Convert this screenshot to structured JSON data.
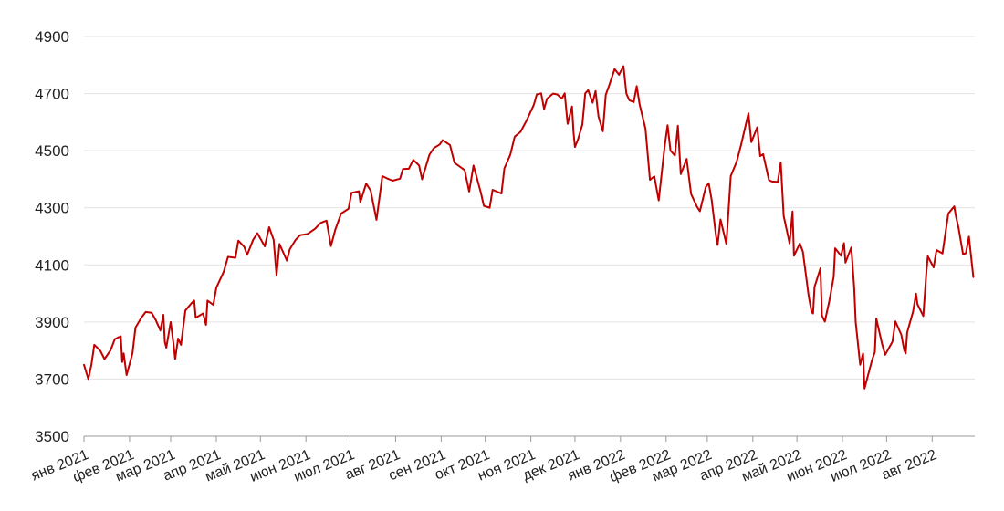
{
  "chart_data": {
    "type": "line",
    "title": "",
    "xlabel": "",
    "ylabel": "",
    "ylim": [
      3500,
      4900
    ],
    "yticks": [
      3500,
      3700,
      3900,
      4100,
      4300,
      4500,
      4700,
      4900
    ],
    "xlim": [
      "2021-01-01",
      "2022-08-30"
    ],
    "xticks": [
      {
        "date": "2021-01-01",
        "label": "янв 2021"
      },
      {
        "date": "2021-02-01",
        "label": "фев 2021"
      },
      {
        "date": "2021-03-01",
        "label": "мар 2021"
      },
      {
        "date": "2021-04-01",
        "label": "апр 2021"
      },
      {
        "date": "2021-05-01",
        "label": "май 2021"
      },
      {
        "date": "2021-06-01",
        "label": "июн 2021"
      },
      {
        "date": "2021-07-01",
        "label": "июл 2021"
      },
      {
        "date": "2021-08-01",
        "label": "авг 2021"
      },
      {
        "date": "2021-09-01",
        "label": "сен 2021"
      },
      {
        "date": "2021-10-01",
        "label": "окт 2021"
      },
      {
        "date": "2021-11-01",
        "label": "ноя 2021"
      },
      {
        "date": "2021-12-01",
        "label": "дек 2021"
      },
      {
        "date": "2022-01-01",
        "label": "янв 2022"
      },
      {
        "date": "2022-02-01",
        "label": "фев 2022"
      },
      {
        "date": "2022-03-01",
        "label": "мар 2022"
      },
      {
        "date": "2022-04-01",
        "label": "апр 2022"
      },
      {
        "date": "2022-05-01",
        "label": "май 2022"
      },
      {
        "date": "2022-06-01",
        "label": "июн 2022"
      },
      {
        "date": "2022-07-01",
        "label": "июл 2022"
      },
      {
        "date": "2022-08-01",
        "label": "авг 2022"
      }
    ],
    "grid": true,
    "series": [
      {
        "color": "#c00000",
        "points": [
          [
            "2021-01-01",
            3750
          ],
          [
            "2021-01-04",
            3700
          ],
          [
            "2021-01-06",
            3750
          ],
          [
            "2021-01-08",
            3820
          ],
          [
            "2021-01-12",
            3800
          ],
          [
            "2021-01-15",
            3770
          ],
          [
            "2021-01-19",
            3800
          ],
          [
            "2021-01-22",
            3840
          ],
          [
            "2021-01-26",
            3850
          ],
          [
            "2021-01-27",
            3760
          ],
          [
            "2021-01-28",
            3790
          ],
          [
            "2021-01-30",
            3714
          ],
          [
            "2021-02-03",
            3790
          ],
          [
            "2021-02-05",
            3880
          ],
          [
            "2021-02-09",
            3915
          ],
          [
            "2021-02-12",
            3935
          ],
          [
            "2021-02-16",
            3932
          ],
          [
            "2021-02-19",
            3905
          ],
          [
            "2021-02-22",
            3870
          ],
          [
            "2021-02-24",
            3925
          ],
          [
            "2021-02-25",
            3830
          ],
          [
            "2021-02-26",
            3810
          ],
          [
            "2021-03-01",
            3900
          ],
          [
            "2021-03-03",
            3820
          ],
          [
            "2021-03-04",
            3770
          ],
          [
            "2021-03-06",
            3842
          ],
          [
            "2021-03-08",
            3820
          ],
          [
            "2021-03-11",
            3940
          ],
          [
            "2021-03-15",
            3965
          ],
          [
            "2021-03-17",
            3975
          ],
          [
            "2021-03-18",
            3915
          ],
          [
            "2021-03-23",
            3930
          ],
          [
            "2021-03-25",
            3890
          ],
          [
            "2021-03-26",
            3975
          ],
          [
            "2021-03-30",
            3960
          ],
          [
            "2021-04-01",
            4020
          ],
          [
            "2021-04-06",
            4075
          ],
          [
            "2021-04-09",
            4128
          ],
          [
            "2021-04-14",
            4125
          ],
          [
            "2021-04-16",
            4185
          ],
          [
            "2021-04-20",
            4163
          ],
          [
            "2021-04-22",
            4135
          ],
          [
            "2021-04-26",
            4187
          ],
          [
            "2021-04-29",
            4211
          ],
          [
            "2021-05-04",
            4165
          ],
          [
            "2021-05-07",
            4232
          ],
          [
            "2021-05-10",
            4188
          ],
          [
            "2021-05-12",
            4063
          ],
          [
            "2021-05-14",
            4173
          ],
          [
            "2021-05-19",
            4115
          ],
          [
            "2021-05-21",
            4155
          ],
          [
            "2021-05-25",
            4188
          ],
          [
            "2021-05-28",
            4204
          ],
          [
            "2021-06-02",
            4208
          ],
          [
            "2021-06-07",
            4226
          ],
          [
            "2021-06-11",
            4247
          ],
          [
            "2021-06-15",
            4255
          ],
          [
            "2021-06-18",
            4166
          ],
          [
            "2021-06-21",
            4224
          ],
          [
            "2021-06-25",
            4280
          ],
          [
            "2021-06-30",
            4297
          ],
          [
            "2021-07-02",
            4352
          ],
          [
            "2021-07-07",
            4358
          ],
          [
            "2021-07-08",
            4320
          ],
          [
            "2021-07-12",
            4385
          ],
          [
            "2021-07-15",
            4360
          ],
          [
            "2021-07-19",
            4258
          ],
          [
            "2021-07-23",
            4411
          ],
          [
            "2021-07-27",
            4401
          ],
          [
            "2021-07-30",
            4395
          ],
          [
            "2021-08-04",
            4402
          ],
          [
            "2021-08-06",
            4436
          ],
          [
            "2021-08-10",
            4437
          ],
          [
            "2021-08-13",
            4468
          ],
          [
            "2021-08-17",
            4448
          ],
          [
            "2021-08-19",
            4400
          ],
          [
            "2021-08-24",
            4486
          ],
          [
            "2021-08-27",
            4509
          ],
          [
            "2021-08-31",
            4522
          ],
          [
            "2021-09-02",
            4537
          ],
          [
            "2021-09-07",
            4520
          ],
          [
            "2021-09-10",
            4458
          ],
          [
            "2021-09-14",
            4443
          ],
          [
            "2021-09-17",
            4432
          ],
          [
            "2021-09-20",
            4357
          ],
          [
            "2021-09-23",
            4448
          ],
          [
            "2021-09-28",
            4352
          ],
          [
            "2021-09-30",
            4307
          ],
          [
            "2021-10-04",
            4300
          ],
          [
            "2021-10-06",
            4363
          ],
          [
            "2021-10-12",
            4350
          ],
          [
            "2021-10-14",
            4438
          ],
          [
            "2021-10-18",
            4486
          ],
          [
            "2021-10-21",
            4549
          ],
          [
            "2021-10-25",
            4566
          ],
          [
            "2021-10-29",
            4605
          ],
          [
            "2021-11-03",
            4660
          ],
          [
            "2021-11-05",
            4697
          ],
          [
            "2021-11-08",
            4701
          ],
          [
            "2021-11-10",
            4646
          ],
          [
            "2021-11-12",
            4682
          ],
          [
            "2021-11-16",
            4700
          ],
          [
            "2021-11-19",
            4697
          ],
          [
            "2021-11-22",
            4682
          ],
          [
            "2021-11-24",
            4701
          ],
          [
            "2021-11-26",
            4594
          ],
          [
            "2021-11-29",
            4655
          ],
          [
            "2021-11-30",
            4567
          ],
          [
            "2021-12-01",
            4513
          ],
          [
            "2021-12-03",
            4538
          ],
          [
            "2021-12-06",
            4591
          ],
          [
            "2021-12-08",
            4701
          ],
          [
            "2021-12-10",
            4712
          ],
          [
            "2021-12-13",
            4668
          ],
          [
            "2021-12-15",
            4709
          ],
          [
            "2021-12-17",
            4620
          ],
          [
            "2021-12-20",
            4568
          ],
          [
            "2021-12-22",
            4696
          ],
          [
            "2021-12-24",
            4725
          ],
          [
            "2021-12-28",
            4786
          ],
          [
            "2021-12-31",
            4766
          ],
          [
            "2022-01-03",
            4796
          ],
          [
            "2022-01-05",
            4700
          ],
          [
            "2022-01-07",
            4677
          ],
          [
            "2022-01-10",
            4670
          ],
          [
            "2022-01-12",
            4726
          ],
          [
            "2022-01-14",
            4662
          ],
          [
            "2022-01-18",
            4577
          ],
          [
            "2022-01-21",
            4398
          ],
          [
            "2022-01-24",
            4410
          ],
          [
            "2022-01-27",
            4326
          ],
          [
            "2022-01-31",
            4515
          ],
          [
            "2022-02-02",
            4589
          ],
          [
            "2022-02-04",
            4500
          ],
          [
            "2022-02-07",
            4483
          ],
          [
            "2022-02-09",
            4587
          ],
          [
            "2022-02-11",
            4418
          ],
          [
            "2022-02-15",
            4471
          ],
          [
            "2022-02-18",
            4348
          ],
          [
            "2022-02-22",
            4304
          ],
          [
            "2022-02-24",
            4288
          ],
          [
            "2022-02-28",
            4373
          ],
          [
            "2022-03-02",
            4386
          ],
          [
            "2022-03-04",
            4328
          ],
          [
            "2022-03-07",
            4201
          ],
          [
            "2022-03-08",
            4170
          ],
          [
            "2022-03-10",
            4259
          ],
          [
            "2022-03-14",
            4173
          ],
          [
            "2022-03-17",
            4411
          ],
          [
            "2022-03-21",
            4461
          ],
          [
            "2022-03-24",
            4520
          ],
          [
            "2022-03-29",
            4631
          ],
          [
            "2022-03-31",
            4530
          ],
          [
            "2022-04-04",
            4582
          ],
          [
            "2022-04-06",
            4481
          ],
          [
            "2022-04-08",
            4488
          ],
          [
            "2022-04-12",
            4397
          ],
          [
            "2022-04-14",
            4392
          ],
          [
            "2022-04-18",
            4391
          ],
          [
            "2022-04-20",
            4459
          ],
          [
            "2022-04-22",
            4272
          ],
          [
            "2022-04-26",
            4175
          ],
          [
            "2022-04-28",
            4287
          ],
          [
            "2022-04-29",
            4132
          ],
          [
            "2022-05-03",
            4175
          ],
          [
            "2022-05-05",
            4147
          ],
          [
            "2022-05-09",
            3991
          ],
          [
            "2022-05-11",
            3935
          ],
          [
            "2022-05-12",
            3930
          ],
          [
            "2022-05-13",
            4023
          ],
          [
            "2022-05-17",
            4088
          ],
          [
            "2022-05-18",
            3923
          ],
          [
            "2022-05-20",
            3901
          ],
          [
            "2022-05-23",
            3973
          ],
          [
            "2022-05-26",
            4058
          ],
          [
            "2022-05-27",
            4158
          ],
          [
            "2022-05-31",
            4132
          ],
          [
            "2022-06-02",
            4176
          ],
          [
            "2022-06-03",
            4108
          ],
          [
            "2022-06-07",
            4161
          ],
          [
            "2022-06-09",
            4018
          ],
          [
            "2022-06-10",
            3900
          ],
          [
            "2022-06-13",
            3750
          ],
          [
            "2022-06-15",
            3790
          ],
          [
            "2022-06-16",
            3667
          ],
          [
            "2022-06-21",
            3765
          ],
          [
            "2022-06-23",
            3795
          ],
          [
            "2022-06-24",
            3912
          ],
          [
            "2022-06-28",
            3822
          ],
          [
            "2022-06-30",
            3785
          ],
          [
            "2022-07-05",
            3831
          ],
          [
            "2022-07-07",
            3902
          ],
          [
            "2022-07-11",
            3855
          ],
          [
            "2022-07-13",
            3801
          ],
          [
            "2022-07-14",
            3790
          ],
          [
            "2022-07-15",
            3863
          ],
          [
            "2022-07-19",
            3937
          ],
          [
            "2022-07-21",
            3999
          ],
          [
            "2022-07-22",
            3962
          ],
          [
            "2022-07-26",
            3921
          ],
          [
            "2022-07-28",
            4072
          ],
          [
            "2022-07-29",
            4130
          ],
          [
            "2022-08-02",
            4091
          ],
          [
            "2022-08-04",
            4152
          ],
          [
            "2022-08-08",
            4140
          ],
          [
            "2022-08-10",
            4210
          ],
          [
            "2022-08-12",
            4280
          ],
          [
            "2022-08-16",
            4305
          ],
          [
            "2022-08-17",
            4274
          ],
          [
            "2022-08-19",
            4228
          ],
          [
            "2022-08-22",
            4138
          ],
          [
            "2022-08-24",
            4141
          ],
          [
            "2022-08-26",
            4199
          ],
          [
            "2022-08-29",
            4057
          ]
        ]
      }
    ]
  }
}
